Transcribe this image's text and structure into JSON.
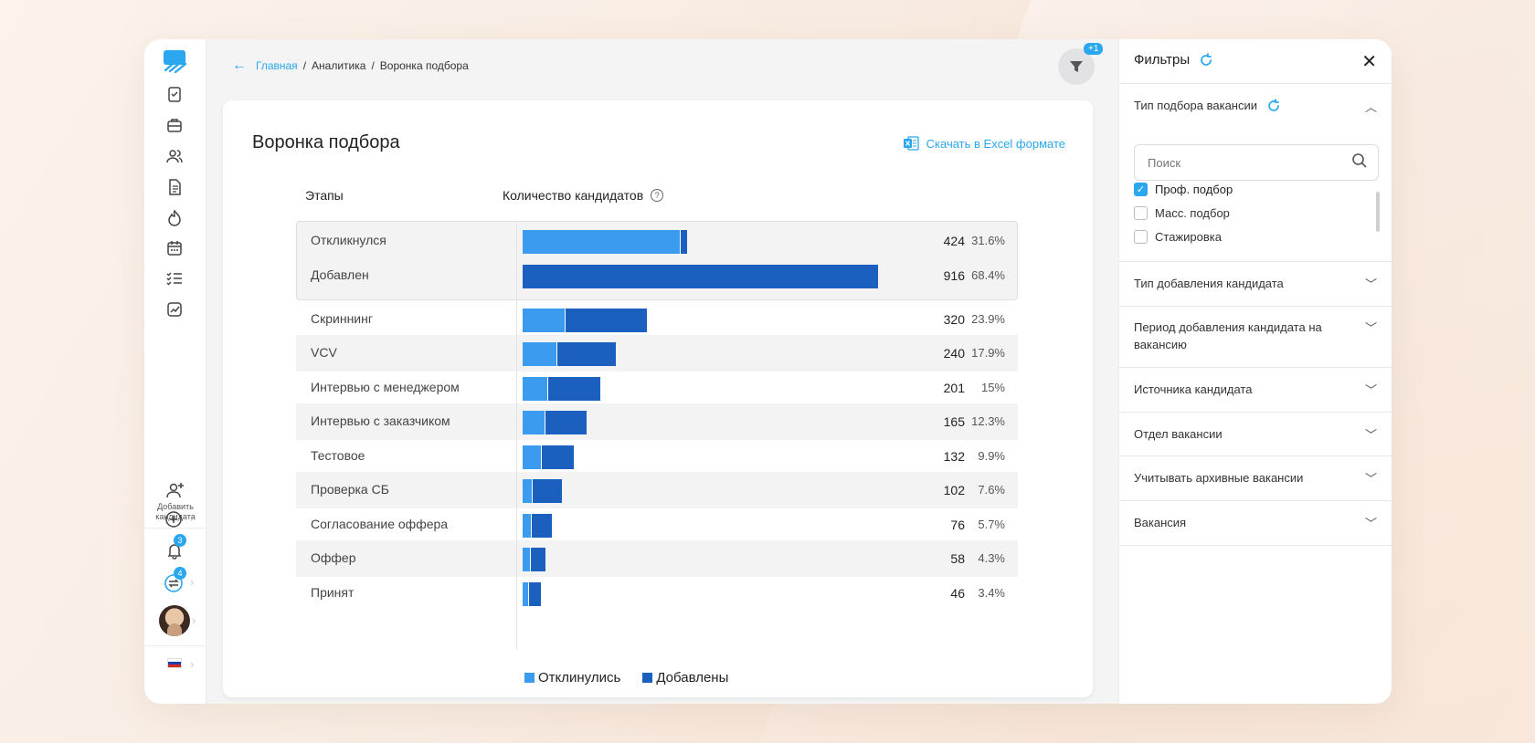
{
  "nav": {
    "add_candidate_label": "Добавить кандидата",
    "notifications_count": "3",
    "sync_count": "4"
  },
  "breadcrumbs": {
    "home": "Главная",
    "sep1": "/",
    "analytics": "Аналитика",
    "sep2": "/",
    "current": "Воронка подбора"
  },
  "filter_badge": "+1",
  "card": {
    "title": "Воронка подбора",
    "excel_label": "Скачать в Excel формате",
    "col_stages": "Этапы",
    "col_count": "Количество кандидатов",
    "help_glyph": "?"
  },
  "chart_data": {
    "type": "bar",
    "orientation": "horizontal-stacked",
    "series": [
      {
        "name": "Отклинулись",
        "color": "#3a9bef"
      },
      {
        "name": "Добавлены",
        "color": "#1b5fbf"
      }
    ],
    "rows": [
      {
        "stage": "Откликнулся",
        "count": "424",
        "pct": "31.6%",
        "value": 424,
        "responded": 406,
        "added": 18,
        "grouped": true
      },
      {
        "stage": "Добавлен",
        "count": "916",
        "pct": "68.4%",
        "value": 916,
        "responded": 0,
        "added": 916,
        "grouped": true
      },
      {
        "stage": "Скриннинг",
        "count": "320",
        "pct": "23.9%",
        "value": 320,
        "responded": 108,
        "added": 212
      },
      {
        "stage": "VCV",
        "count": "240",
        "pct": "17.9%",
        "value": 240,
        "responded": 86,
        "added": 154
      },
      {
        "stage": "Интервью с менеджером",
        "count": "201",
        "pct": "15%",
        "value": 201,
        "responded": 64,
        "added": 137
      },
      {
        "stage": "Интервью с заказчиком",
        "count": "165",
        "pct": "12.3%",
        "value": 165,
        "responded": 56,
        "added": 109
      },
      {
        "stage": "Тестовое",
        "count": "132",
        "pct": "9.9%",
        "value": 132,
        "responded": 48,
        "added": 84
      },
      {
        "stage": "Проверка СБ",
        "count": "102",
        "pct": "7.6%",
        "value": 102,
        "responded": 24,
        "added": 78
      },
      {
        "stage": "Согласование оффера",
        "count": "76",
        "pct": "5.7%",
        "value": 76,
        "responded": 22,
        "added": 54
      },
      {
        "stage": "Оффер",
        "count": "58",
        "pct": "4.3%",
        "value": 58,
        "responded": 20,
        "added": 38
      },
      {
        "stage": "Принят",
        "count": "46",
        "pct": "3.4%",
        "value": 46,
        "responded": 14,
        "added": 32
      }
    ],
    "max": 916,
    "legend": [
      "Отклинулись",
      "Добавлены"
    ]
  },
  "filters": {
    "title": "Фильтры",
    "close_glyph": "✕",
    "vacancy_type": "Тип подбора вакансии",
    "search_placeholder": "Поиск",
    "options": [
      {
        "label": "Проф. подбор",
        "checked": true
      },
      {
        "label": "Масс. подбор",
        "checked": false
      },
      {
        "label": "Стажировка",
        "checked": false
      }
    ],
    "sections": [
      "Тип добавления кандидата",
      "Период добавления кандидата на вакансию",
      "Источника кандидата",
      "Отдел вакансии",
      "Учитывать архивные вакансии",
      "Вакансия"
    ]
  }
}
